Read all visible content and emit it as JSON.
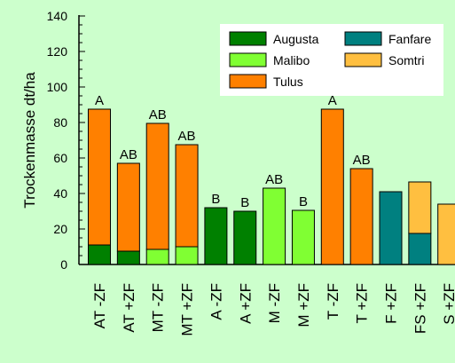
{
  "chart_data": {
    "type": "bar",
    "stacked": true,
    "ylabel": "Trockenmasse dt/ha",
    "xlabel": "",
    "ylim": [
      0,
      140
    ],
    "yticks": [
      0,
      20,
      40,
      60,
      80,
      100,
      120,
      140
    ],
    "categories": [
      "AT -ZF",
      "AT +ZF",
      "MT -ZF",
      "MT +ZF",
      "A -ZF",
      "A +ZF",
      "M -ZF",
      "M +ZF",
      "T -ZF",
      "T +ZF",
      "F +ZF",
      "FS +ZF",
      "S +ZF"
    ],
    "series": [
      {
        "name": "Augusta",
        "color": "#008000",
        "values": [
          11,
          7.5,
          0,
          0,
          32,
          30,
          0,
          0,
          0,
          0,
          0,
          0,
          0
        ]
      },
      {
        "name": "Malibo",
        "color": "#80ff33",
        "values": [
          0,
          0,
          8.5,
          10,
          0,
          0,
          43,
          30.5,
          0,
          0,
          0,
          0,
          0
        ]
      },
      {
        "name": "Tulus",
        "color": "#ff8000",
        "values": [
          76.5,
          49.5,
          71,
          57.5,
          0,
          0,
          0,
          0,
          87.5,
          54,
          0,
          0,
          0
        ]
      },
      {
        "name": "Fanfare",
        "color": "#008080",
        "values": [
          0,
          0,
          0,
          0,
          0,
          0,
          0,
          0,
          0,
          0,
          41,
          17.5,
          0
        ]
      },
      {
        "name": "Somtri",
        "color": "#ffbf40",
        "values": [
          0,
          0,
          0,
          0,
          0,
          0,
          0,
          0,
          0,
          0,
          0,
          29,
          34
        ]
      }
    ],
    "bar_annotations": [
      "A",
      "AB",
      "AB",
      "AB",
      "B",
      "B",
      "AB",
      "B",
      "A",
      "AB",
      "",
      "",
      ""
    ],
    "legend": {
      "placement": "top-right",
      "items": [
        "Augusta",
        "Fanfare",
        "Malibo",
        "Somtri",
        "Tulus"
      ]
    }
  }
}
